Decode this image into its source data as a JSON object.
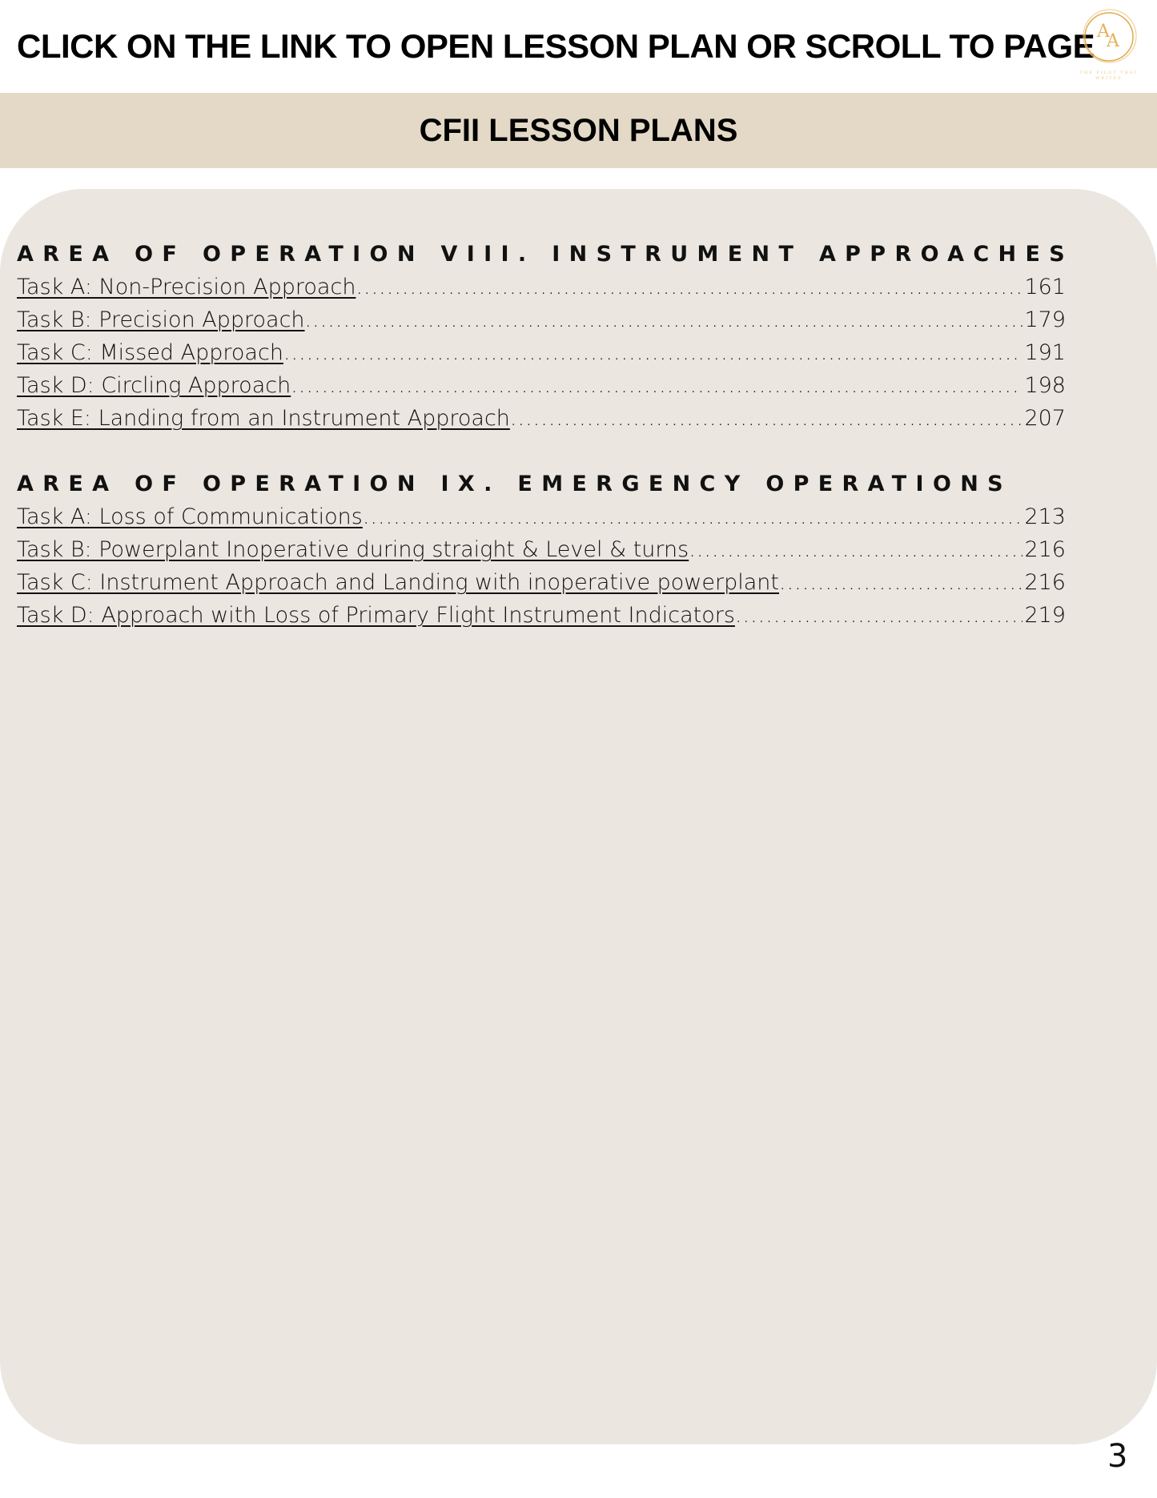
{
  "header": {
    "title": "CLICK ON THE LINK TO OPEN LESSON PLAN OR SCROLL TO PAGE",
    "logo_text": "AA THE PILOT THAT WRITES"
  },
  "band": {
    "title": "CFII LESSON PLANS"
  },
  "sections": [
    {
      "heading": "AREA OF OPERATION VIII. INSTRUMENT APPROACHES",
      "tasks": [
        {
          "label": "Task A: Non-Precision Approach",
          "page": "161"
        },
        {
          "label": "Task B: Precision Approach",
          "page": "179"
        },
        {
          "label": "Task C: Missed Approach",
          "page": "191"
        },
        {
          "label": "Task D: Circling Approach",
          "page": "198"
        },
        {
          "label": "Task E: Landing from an Instrument Approach",
          "page": "207"
        }
      ]
    },
    {
      "heading": "AREA OF OPERATION IX. EMERGENCY OPERATIONS",
      "tasks": [
        {
          "label": "Task A: Loss of Communications",
          "page": "213"
        },
        {
          "label": "Task B: Powerplant Inoperative during straight & Level & turns",
          "page": "216"
        },
        {
          "label": "Task C: Instrument Approach and Landing with inoperative powerplant",
          "page": "216"
        },
        {
          "label": "Task D: Approach with Loss of Primary Flight Instrument Indicators",
          "page": "219"
        }
      ]
    }
  ],
  "page_number": "3",
  "colors": {
    "band": "#e3d9c6",
    "card": "#ebe6df",
    "logo_gold": "#e0a94a"
  }
}
